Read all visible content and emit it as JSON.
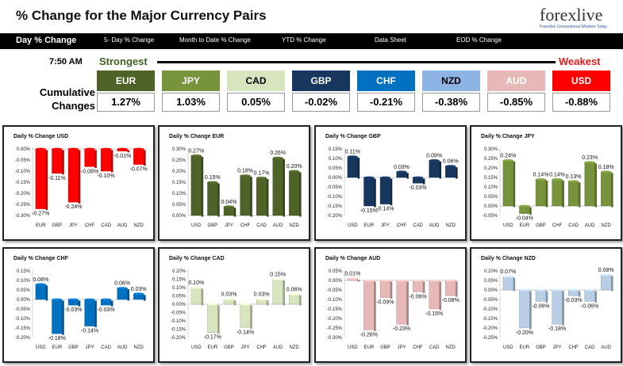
{
  "header": {
    "title": "% Change for the Major Currency Pairs",
    "logo_word": "forexlive",
    "logo_tagline": "Forexlive Conventional Wisdom Today"
  },
  "nav": {
    "items": [
      "Day % Change",
      "5- Day % Change",
      "Month to Date % Change",
      "YTD % Change",
      "Data Sheet",
      "EOD % Change"
    ]
  },
  "summary": {
    "time": "7:50 AM",
    "strongest": "Strongest",
    "weakest": "Weakest",
    "cumulative": "Cumulative Changes",
    "currencies": [
      {
        "name": "EUR",
        "value": "1.27%",
        "bg": "#4f6228",
        "fg": "#ffffff"
      },
      {
        "name": "JPY",
        "value": "1.03%",
        "bg": "#77933c",
        "fg": "#ffffff"
      },
      {
        "name": "CAD",
        "value": "0.05%",
        "bg": "#d7e4bd",
        "fg": "#000000"
      },
      {
        "name": "GBP",
        "value": "-0.02%",
        "bg": "#17375e",
        "fg": "#ffffff"
      },
      {
        "name": "CHF",
        "value": "-0.21%",
        "bg": "#0070c0",
        "fg": "#ffffff"
      },
      {
        "name": "NZD",
        "value": "-0.38%",
        "bg": "#8eb4e3",
        "fg": "#000000"
      },
      {
        "name": "AUD",
        "value": "-0.85%",
        "bg": "#e6b9b8",
        "fg": "#ffffff"
      },
      {
        "name": "USD",
        "value": "-0.88%",
        "bg": "#ff0000",
        "fg": "#ffffff"
      }
    ]
  },
  "chart_data": [
    {
      "type": "bar",
      "title": "Daily % Change USD",
      "color": "#ff0000",
      "categories": [
        "EUR",
        "GBP",
        "JPY",
        "CHF",
        "CAD",
        "AUD",
        "NZD"
      ],
      "values": [
        -0.27,
        -0.11,
        -0.24,
        -0.08,
        -0.1,
        -0.01,
        -0.07
      ],
      "yticks": [
        "0.00%",
        "-0.05%",
        "-0.10%",
        "-0.15%",
        "-0.20%",
        "-0.25%",
        "-0.30%"
      ],
      "ylim": [
        -0.3,
        0.0
      ]
    },
    {
      "type": "bar",
      "title": "Daily % Change EUR",
      "color": "#4f6228",
      "categories": [
        "USD",
        "GBP",
        "JPY",
        "CHF",
        "CAD",
        "AUD",
        "NZD"
      ],
      "values": [
        0.27,
        0.15,
        0.04,
        0.18,
        0.17,
        0.26,
        0.2
      ],
      "yticks": [
        "0.30%",
        "0.25%",
        "0.20%",
        "0.15%",
        "0.10%",
        "0.05%",
        "0.00%"
      ],
      "ylim": [
        0.0,
        0.3
      ]
    },
    {
      "type": "bar",
      "title": "Daily % Change GBP",
      "color": "#17375e",
      "categories": [
        "USD",
        "EUR",
        "JPY",
        "CHF",
        "CAD",
        "AUD",
        "NZD"
      ],
      "values": [
        0.11,
        -0.15,
        -0.14,
        0.03,
        -0.03,
        0.09,
        0.06
      ],
      "yticks": [
        "0.15%",
        "0.10%",
        "0.05%",
        "0.00%",
        "-0.05%",
        "-0.10%",
        "-0.15%",
        "-0.20%"
      ],
      "ylim": [
        -0.2,
        0.15
      ]
    },
    {
      "type": "bar",
      "title": "Daily % Change JPY",
      "color": "#77933c",
      "categories": [
        "USD",
        "EUR",
        "GBP",
        "CHF",
        "CAD",
        "AUD",
        "NZD"
      ],
      "values": [
        0.24,
        -0.04,
        0.14,
        0.14,
        0.13,
        0.23,
        0.18
      ],
      "yticks": [
        "0.30%",
        "0.25%",
        "0.20%",
        "0.15%",
        "0.10%",
        "0.05%",
        "0.00%",
        "-0.05%"
      ],
      "ylim": [
        -0.05,
        0.3
      ]
    },
    {
      "type": "bar",
      "title": "Daily % Change CHF",
      "color": "#0070c0",
      "categories": [
        "USD",
        "EUR",
        "GBP",
        "JPY",
        "CAD",
        "AUD",
        "NZD"
      ],
      "values": [
        0.08,
        -0.18,
        -0.03,
        -0.14,
        -0.03,
        0.06,
        0.03
      ],
      "yticks": [
        "0.15%",
        "0.10%",
        "0.05%",
        "0.00%",
        "-0.05%",
        "-0.10%",
        "-0.15%",
        "-0.20%"
      ],
      "ylim": [
        -0.2,
        0.15
      ]
    },
    {
      "type": "bar",
      "title": "Daily % Change CAD",
      "color": "#d7e4bd",
      "categories": [
        "USD",
        "EUR",
        "GBP",
        "JPY",
        "CHF",
        "AUD",
        "NZD"
      ],
      "values": [
        0.1,
        -0.17,
        0.03,
        -0.14,
        0.03,
        0.15,
        0.06
      ],
      "yticks": [
        "0.20%",
        "0.15%",
        "0.10%",
        "0.05%",
        "0.00%",
        "-0.05%",
        "-0.10%",
        "-0.15%",
        "-0.20%"
      ],
      "ylim": [
        -0.2,
        0.2
      ]
    },
    {
      "type": "bar",
      "title": "Daily % Change AUD",
      "color": "#e6b9b8",
      "categories": [
        "USD",
        "EUR",
        "GBP",
        "JPY",
        "CHF",
        "CAD",
        "NZD"
      ],
      "values": [
        0.01,
        -0.26,
        -0.09,
        -0.23,
        -0.06,
        -0.15,
        -0.08
      ],
      "yticks": [
        "0.05%",
        "0.00%",
        "-0.05%",
        "-0.10%",
        "-0.15%",
        "-0.20%",
        "-0.25%",
        "-0.30%"
      ],
      "ylim": [
        -0.3,
        0.05
      ]
    },
    {
      "type": "bar",
      "title": "Daily % Change NZD",
      "color": "#b9cde5",
      "categories": [
        "USD",
        "EUR",
        "GBP",
        "JPY",
        "CHF",
        "CAD",
        "AUD"
      ],
      "values": [
        0.07,
        -0.2,
        -0.06,
        -0.18,
        -0.03,
        -0.06,
        0.08
      ],
      "yticks": [
        "0.10%",
        "0.05%",
        "0.00%",
        "-0.05%",
        "-0.10%",
        "-0.15%",
        "-0.20%",
        "-0.25%"
      ],
      "ylim": [
        -0.25,
        0.1
      ]
    }
  ]
}
